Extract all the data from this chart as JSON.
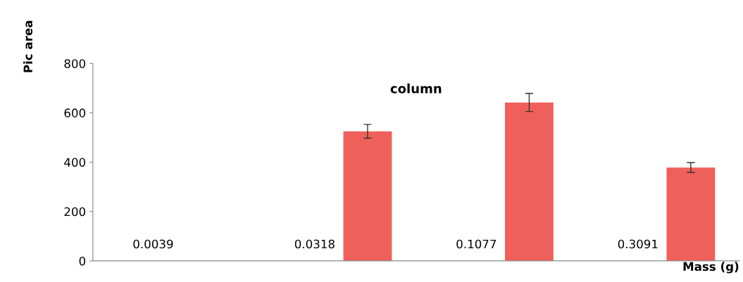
{
  "chart_data": {
    "type": "bar",
    "title": "column",
    "xlabel": "Mass (g)",
    "ylabel": "Pic area",
    "categories": [
      "0.0039",
      "0.0318",
      "0.1077",
      "0.3091"
    ],
    "values": [
      null,
      525,
      642,
      378
    ],
    "errors": [
      null,
      28,
      37,
      20
    ],
    "color": "#f0605a",
    "ylim": [
      0,
      800
    ],
    "yticks": [
      0,
      200,
      400,
      600,
      800
    ],
    "grid": false,
    "legend": false
  }
}
